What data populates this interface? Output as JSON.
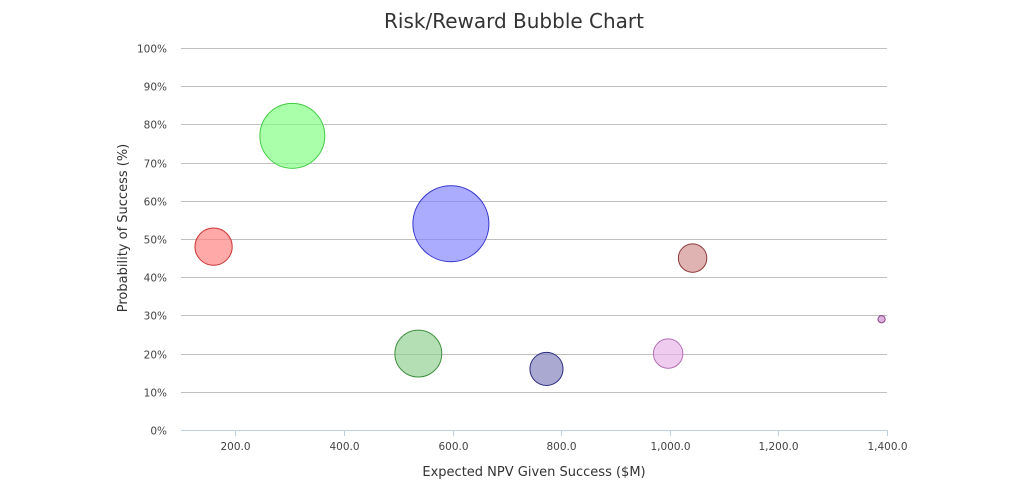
{
  "chart_data": {
    "type": "scatter",
    "subtype": "bubble",
    "title": "Risk/Reward Bubble Chart",
    "xlabel": "Expected NPV Given Success ($M)",
    "ylabel": "Probability of Success (%)",
    "xlim": [
      100,
      1400
    ],
    "ylim": [
      0,
      100
    ],
    "x_ticks": [
      200,
      400,
      600,
      800,
      1000,
      1200,
      1400
    ],
    "x_tick_labels": [
      "200.0",
      "400.0",
      "600.0",
      "800.0",
      "1,000.0",
      "1,200.0",
      "1,400.0"
    ],
    "y_ticks": [
      0,
      10,
      20,
      30,
      40,
      50,
      60,
      70,
      80,
      90,
      100
    ],
    "y_tick_labels": [
      "0%",
      "10%",
      "20%",
      "30%",
      "40%",
      "50%",
      "60%",
      "70%",
      "80%",
      "90%",
      "100%"
    ],
    "grid": true,
    "legend": "none",
    "points": [
      {
        "x": 160,
        "y": 48,
        "size": 24,
        "fill": "#ff7b7b",
        "stroke": "#cc3333"
      },
      {
        "x": 305,
        "y": 77,
        "size": 73,
        "fill": "#7dff7d",
        "stroke": "#44cc44"
      },
      {
        "x": 597,
        "y": 54,
        "size": 100,
        "fill": "#8080ff",
        "stroke": "#3333cc"
      },
      {
        "x": 537,
        "y": 20,
        "size": 38,
        "fill": "#8ccc8c",
        "stroke": "#3d8f3d"
      },
      {
        "x": 773,
        "y": 16,
        "size": 19,
        "fill": "#7b7bb8",
        "stroke": "#2d2d80"
      },
      {
        "x": 997,
        "y": 20,
        "size": 15,
        "fill": "#e6b0e6",
        "stroke": "#b470b4"
      },
      {
        "x": 1042,
        "y": 45,
        "size": 14,
        "fill": "#d08a8a",
        "stroke": "#8c3a3a"
      },
      {
        "x": 1390,
        "y": 29,
        "size": 0.9,
        "fill": "#cc88cc",
        "stroke": "#884488"
      }
    ]
  }
}
